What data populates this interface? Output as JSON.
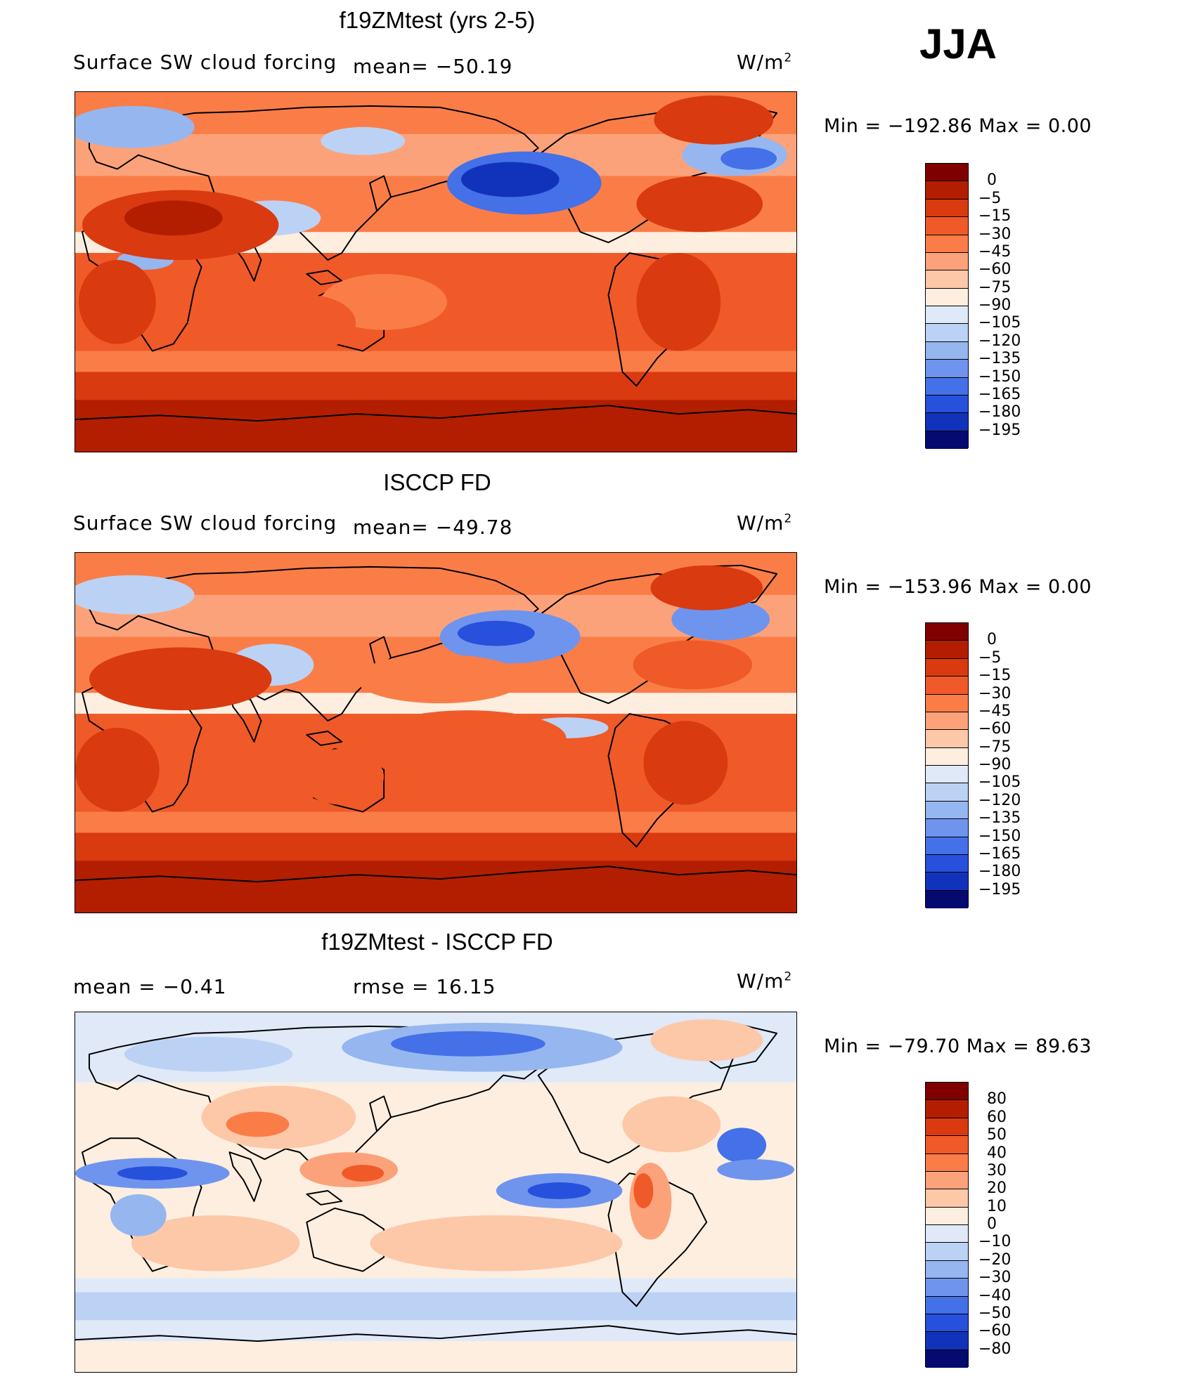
{
  "season": "JJA",
  "panels": [
    {
      "title": "f19ZMtest (yrs 2-5)",
      "variable": "Surface SW cloud forcing",
      "mean": "mean= −50.19",
      "units": "W/m",
      "units_sup": "2",
      "minmax": "Min  =  −192.86  Max  =      0.00",
      "colorbar_labels": [
        "0",
        "−5",
        "−15",
        "−30",
        "−45",
        "−60",
        "−75",
        "−90",
        "−105",
        "−120",
        "−135",
        "−150",
        "−165",
        "−180",
        "−195"
      ]
    },
    {
      "title": "ISCCP FD",
      "variable": "Surface SW cloud forcing",
      "mean": "mean= −49.78",
      "units": "W/m",
      "units_sup": "2",
      "minmax": "Min  =  −153.96  Max  =      0.00",
      "colorbar_labels": [
        "0",
        "−5",
        "−15",
        "−30",
        "−45",
        "−60",
        "−75",
        "−90",
        "−105",
        "−120",
        "−135",
        "−150",
        "−165",
        "−180",
        "−195"
      ]
    },
    {
      "title": "f19ZMtest - ISCCP FD",
      "mean": "mean  =    −0.41",
      "rmse": "rmse  =    16.15",
      "units": "W/m",
      "units_sup": "2",
      "minmax": "Min  =  −79.70  Max  =   89.63",
      "colorbar_labels": [
        "80",
        "60",
        "50",
        "40",
        "30",
        "20",
        "10",
        "0",
        "−10",
        "−20",
        "−30",
        "−40",
        "−50",
        "−60",
        "−80"
      ]
    }
  ],
  "colors": {
    "scale": [
      "#800000",
      "#b31e00",
      "#d93a0f",
      "#f05a28",
      "#fa7d48",
      "#fca27a",
      "#fdc8a8",
      "#fdeee0",
      "#dfe9f8",
      "#bcd2f5",
      "#96b6f0",
      "#6e94ee",
      "#4470e8",
      "#2750dd",
      "#1133bb",
      "#0a1d96",
      "#050a70"
    ]
  }
}
